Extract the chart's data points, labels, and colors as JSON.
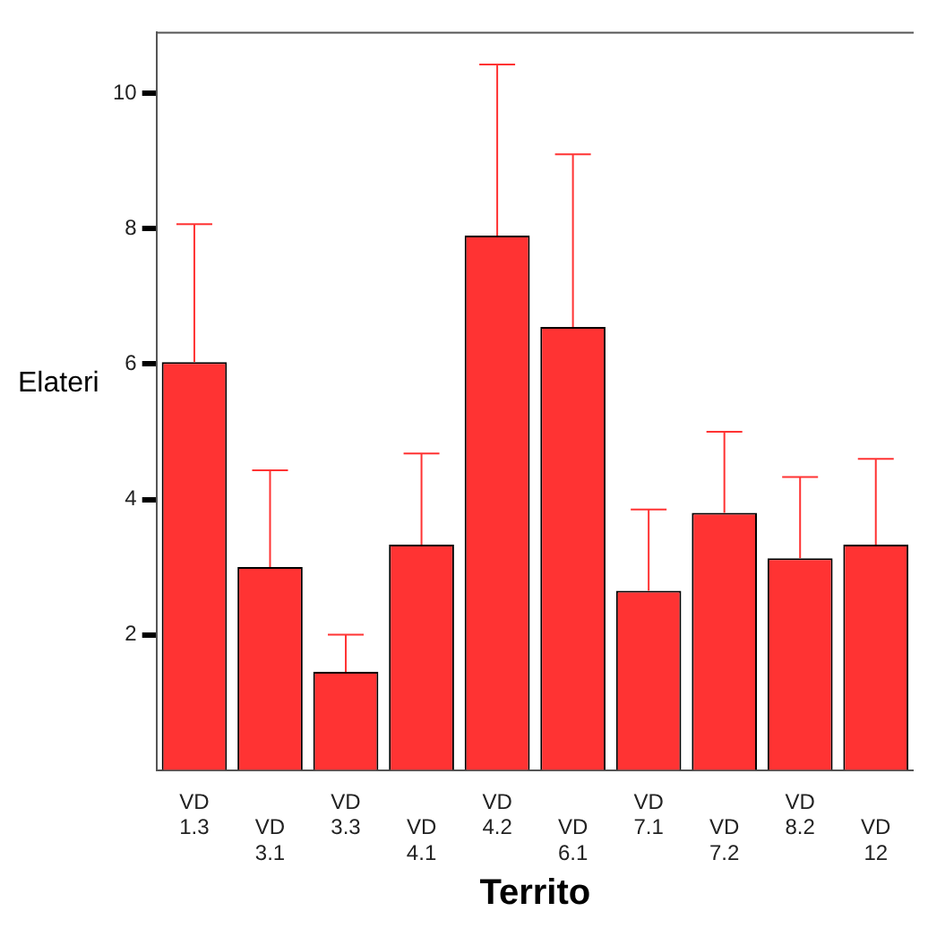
{
  "chart_data": {
    "type": "bar",
    "xlabel": "Territo",
    "ylabel": "Elateri",
    "categories": [
      "VD 1.3",
      "VD 3.1",
      "VD 3.3",
      "VD 4.1",
      "VD 4.2",
      "VD 6.1",
      "VD 7.1",
      "VD 7.2",
      "VD 8.2",
      "VD 12"
    ],
    "values": [
      6.03,
      3.0,
      1.45,
      3.33,
      7.9,
      6.55,
      2.65,
      3.8,
      3.13,
      3.33
    ],
    "errors": [
      [
        6.03,
        8.07
      ],
      [
        3.0,
        4.43
      ],
      [
        1.45,
        2.0
      ],
      [
        3.33,
        4.68
      ],
      [
        7.9,
        10.43
      ],
      [
        6.55,
        9.1
      ],
      [
        2.65,
        3.85
      ],
      [
        3.8,
        5.0
      ],
      [
        3.13,
        4.33
      ],
      [
        3.33,
        4.6
      ]
    ],
    "color": "#ff3333",
    "ylim": [
      0,
      10.9
    ],
    "yticks": [
      2,
      4,
      6,
      8,
      10
    ],
    "grid": false,
    "legend": false
  }
}
